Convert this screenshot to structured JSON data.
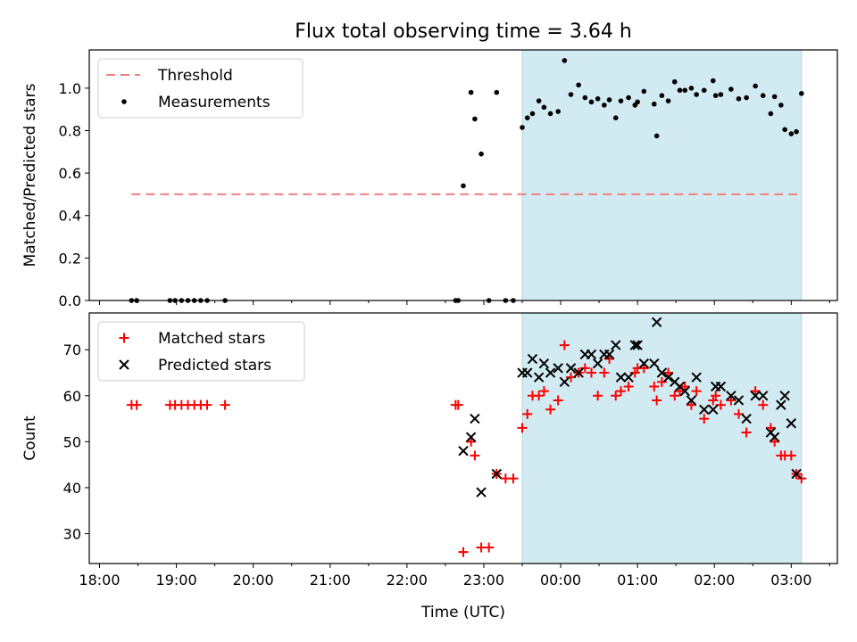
{
  "chart_data": {
    "title": "Flux total observing time = 3.64 h",
    "xlabel": "Time (UTC)",
    "x_ticks": [
      "18:00",
      "19:00",
      "20:00",
      "21:00",
      "22:00",
      "23:00",
      "00:00",
      "01:00",
      "02:00",
      "03:00"
    ],
    "observing_window": {
      "start": "23:30",
      "end": "03:08",
      "color": "#add8e6"
    },
    "subplots": [
      {
        "type": "scatter",
        "ylabel": "Matched/Predicted stars",
        "ylim": [
          0,
          1.18
        ],
        "y_ticks": [
          "0.0",
          "0.2",
          "0.4",
          "0.6",
          "0.8",
          "1.0"
        ],
        "legend": [
          "Threshold",
          "Measurements"
        ],
        "legend_position": "upper-left",
        "threshold": {
          "name": "Threshold",
          "value": 0.5,
          "x_range": [
            "18:25",
            "03:06"
          ],
          "color": "#f08080"
        },
        "series": [
          {
            "name": "Measurements",
            "marker": "dot",
            "color": "#000000",
            "points": [
              [
                "18:25",
                0
              ],
              [
                "18:29",
                0
              ],
              [
                "18:55",
                0
              ],
              [
                "18:59",
                0
              ],
              [
                "19:04",
                0
              ],
              [
                "19:09",
                0
              ],
              [
                "19:14",
                0
              ],
              [
                "19:19",
                0
              ],
              [
                "19:24",
                0
              ],
              [
                "19:38",
                0
              ],
              [
                "22:38",
                0
              ],
              [
                "22:40",
                0
              ],
              [
                "22:44",
                0.54
              ],
              [
                "22:50",
                0.98
              ],
              [
                "22:53",
                0.855
              ],
              [
                "22:58",
                0.69
              ],
              [
                "23:04",
                0
              ],
              [
                "23:10",
                0.98
              ],
              [
                "23:17",
                0
              ],
              [
                "23:23",
                0
              ],
              [
                "23:30",
                0.815
              ],
              [
                "23:34",
                0.86
              ],
              [
                "23:38",
                0.88
              ],
              [
                "23:43",
                0.94
              ],
              [
                "23:47",
                0.91
              ],
              [
                "23:52",
                0.88
              ],
              [
                "23:58",
                0.89
              ],
              [
                "00:03",
                1.13
              ],
              [
                "00:08",
                0.97
              ],
              [
                "00:14",
                1.015
              ],
              [
                "00:19",
                0.955
              ],
              [
                "00:24",
                0.935
              ],
              [
                "00:29",
                0.95
              ],
              [
                "00:34",
                0.92
              ],
              [
                "00:38",
                0.945
              ],
              [
                "00:43",
                0.86
              ],
              [
                "00:47",
                0.94
              ],
              [
                "00:53",
                0.955
              ],
              [
                "00:58",
                0.92
              ],
              [
                "01:00",
                0.935
              ],
              [
                "01:05",
                0.985
              ],
              [
                "01:13",
                0.925
              ],
              [
                "01:15",
                0.775
              ],
              [
                "01:19",
                0.965
              ],
              [
                "01:24",
                0.94
              ],
              [
                "01:29",
                1.03
              ],
              [
                "01:33",
                0.99
              ],
              [
                "01:37",
                0.99
              ],
              [
                "01:42",
                1.0
              ],
              [
                "01:46",
                0.97
              ],
              [
                "01:52",
                0.99
              ],
              [
                "01:59",
                1.035
              ],
              [
                "02:01",
                0.965
              ],
              [
                "02:05",
                0.97
              ],
              [
                "02:13",
                0.995
              ],
              [
                "02:19",
                0.95
              ],
              [
                "02:25",
                0.955
              ],
              [
                "02:32",
                1.01
              ],
              [
                "02:38",
                0.965
              ],
              [
                "02:44",
                0.88
              ],
              [
                "02:47",
                0.96
              ],
              [
                "02:52",
                0.92
              ],
              [
                "02:55",
                0.805
              ],
              [
                "03:00",
                0.785
              ],
              [
                "03:04",
                0.795
              ],
              [
                "03:08",
                0.975
              ]
            ]
          }
        ]
      },
      {
        "type": "scatter",
        "ylabel": "Count",
        "ylim": [
          23.5,
          78
        ],
        "y_ticks": [
          "30",
          "40",
          "50",
          "60",
          "70"
        ],
        "legend": [
          "Matched stars",
          "Predicted stars"
        ],
        "legend_position": "upper-left",
        "series": [
          {
            "name": "Matched stars",
            "marker": "plus",
            "color": "#ff0000",
            "points": [
              [
                "18:25",
                58
              ],
              [
                "18:29",
                58
              ],
              [
                "18:55",
                58
              ],
              [
                "18:59",
                58
              ],
              [
                "19:04",
                58
              ],
              [
                "19:09",
                58
              ],
              [
                "19:14",
                58
              ],
              [
                "19:19",
                58
              ],
              [
                "19:24",
                58
              ],
              [
                "19:38",
                58
              ],
              [
                "22:38",
                58
              ],
              [
                "22:40",
                58
              ],
              [
                "22:44",
                26
              ],
              [
                "22:50",
                50
              ],
              [
                "22:53",
                47
              ],
              [
                "22:58",
                27
              ],
              [
                "23:04",
                27
              ],
              [
                "23:10",
                43
              ],
              [
                "23:17",
                42
              ],
              [
                "23:23",
                42
              ],
              [
                "23:30",
                53
              ],
              [
                "23:34",
                56
              ],
              [
                "23:38",
                60
              ],
              [
                "23:43",
                60
              ],
              [
                "23:47",
                61
              ],
              [
                "23:52",
                57
              ],
              [
                "23:58",
                59
              ],
              [
                "00:03",
                71
              ],
              [
                "00:08",
                64
              ],
              [
                "00:14",
                65
              ],
              [
                "00:19",
                66
              ],
              [
                "00:24",
                65
              ],
              [
                "00:29",
                60
              ],
              [
                "00:34",
                65
              ],
              [
                "00:38",
                68
              ],
              [
                "00:43",
                60
              ],
              [
                "00:47",
                61
              ],
              [
                "00:53",
                62
              ],
              [
                "00:58",
                65
              ],
              [
                "01:00",
                66
              ],
              [
                "01:05",
                66
              ],
              [
                "01:13",
                62
              ],
              [
                "01:15",
                59
              ],
              [
                "01:19",
                63
              ],
              [
                "01:24",
                65
              ],
              [
                "01:29",
                60
              ],
              [
                "01:33",
                61
              ],
              [
                "01:37",
                62
              ],
              [
                "01:42",
                58
              ],
              [
                "01:46",
                61
              ],
              [
                "01:52",
                55
              ],
              [
                "01:59",
                59
              ],
              [
                "02:01",
                60
              ],
              [
                "02:05",
                58
              ],
              [
                "02:13",
                59
              ],
              [
                "02:19",
                56
              ],
              [
                "02:25",
                52
              ],
              [
                "02:32",
                61
              ],
              [
                "02:38",
                58
              ],
              [
                "02:44",
                53
              ],
              [
                "02:47",
                50
              ],
              [
                "02:52",
                47
              ],
              [
                "02:55",
                47
              ],
              [
                "03:00",
                47
              ],
              [
                "03:04",
                43
              ],
              [
                "03:08",
                42
              ]
            ]
          },
          {
            "name": "Predicted stars",
            "marker": "x",
            "color": "#000000",
            "points": [
              [
                "22:44",
                48
              ],
              [
                "22:50",
                51
              ],
              [
                "22:53",
                55
              ],
              [
                "22:58",
                39
              ],
              [
                "23:10",
                43
              ],
              [
                "23:30",
                65
              ],
              [
                "23:34",
                65
              ],
              [
                "23:38",
                68
              ],
              [
                "23:43",
                64
              ],
              [
                "23:47",
                67
              ],
              [
                "23:52",
                65
              ],
              [
                "23:58",
                66
              ],
              [
                "00:03",
                63
              ],
              [
                "00:08",
                66
              ],
              [
                "00:14",
                65
              ],
              [
                "00:19",
                69
              ],
              [
                "00:24",
                69
              ],
              [
                "00:29",
                67
              ],
              [
                "00:34",
                69
              ],
              [
                "00:38",
                69
              ],
              [
                "00:43",
                71
              ],
              [
                "00:47",
                64
              ],
              [
                "00:53",
                64
              ],
              [
                "00:58",
                71
              ],
              [
                "01:00",
                71
              ],
              [
                "01:05",
                67
              ],
              [
                "01:13",
                67
              ],
              [
                "01:15",
                76
              ],
              [
                "01:19",
                65
              ],
              [
                "01:24",
                64
              ],
              [
                "01:29",
                63
              ],
              [
                "01:33",
                62
              ],
              [
                "01:37",
                61
              ],
              [
                "01:42",
                59
              ],
              [
                "01:46",
                64
              ],
              [
                "01:52",
                57
              ],
              [
                "01:59",
                57
              ],
              [
                "02:01",
                62
              ],
              [
                "02:05",
                62
              ],
              [
                "02:13",
                60
              ],
              [
                "02:19",
                59
              ],
              [
                "02:25",
                55
              ],
              [
                "02:32",
                60
              ],
              [
                "02:38",
                60
              ],
              [
                "02:44",
                52
              ],
              [
                "02:47",
                51
              ],
              [
                "02:52",
                58
              ],
              [
                "02:55",
                60
              ],
              [
                "03:00",
                54
              ],
              [
                "03:04",
                43
              ]
            ]
          }
        ]
      }
    ]
  }
}
